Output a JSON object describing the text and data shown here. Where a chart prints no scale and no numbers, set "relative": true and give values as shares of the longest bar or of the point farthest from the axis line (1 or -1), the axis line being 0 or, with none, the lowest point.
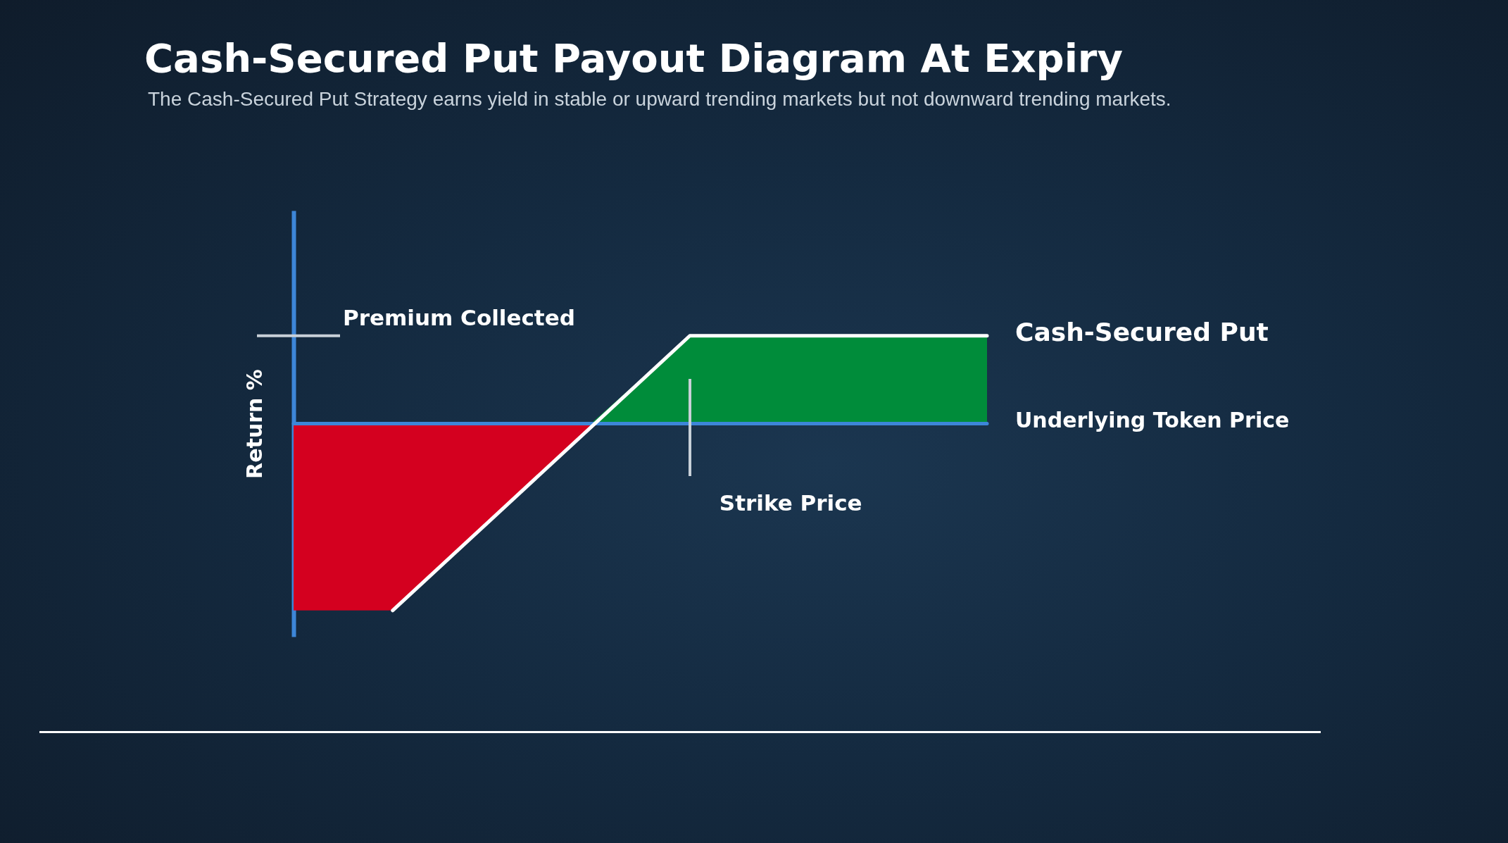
{
  "chart_data": {
    "type": "line",
    "title": "Cash-Secured Put Payout Diagram At Expiry",
    "subtitle": "The Cash-Secured Put Strategy earns yield in stable or upward trending markets but not downward trending markets.",
    "ylabel": "Return %",
    "relative": true,
    "categories": [
      null,
      null,
      null,
      null,
      null,
      null,
      null,
      null
    ],
    "series": [
      {
        "type": "area",
        "color": "#d4001f",
        "values": [
          -1,
          -1,
          -0.51,
          -0.02,
          null,
          null,
          null,
          null
        ]
      },
      {
        "type": "area",
        "color": "#008c3a",
        "values": [
          null,
          null,
          null,
          0,
          0.47,
          0.47,
          0.47,
          0.47
        ]
      },
      {
        "name": "Underlying Token Price",
        "color": "#3d86d8",
        "values": [
          0,
          0,
          0,
          0,
          0,
          0,
          0,
          0
        ]
      },
      {
        "name": "Cash-Secured Put",
        "color": "#ffffff",
        "values": [
          null,
          -1,
          -0.51,
          -0.02,
          0.47,
          0.47,
          0.47,
          0.47
        ]
      }
    ],
    "ref_lines": [
      {
        "axis": "y",
        "value": 0.47,
        "label": "Premium Collected",
        "color": "#c8d0d8"
      }
    ],
    "annotations": [
      "Strike Price"
    ]
  }
}
